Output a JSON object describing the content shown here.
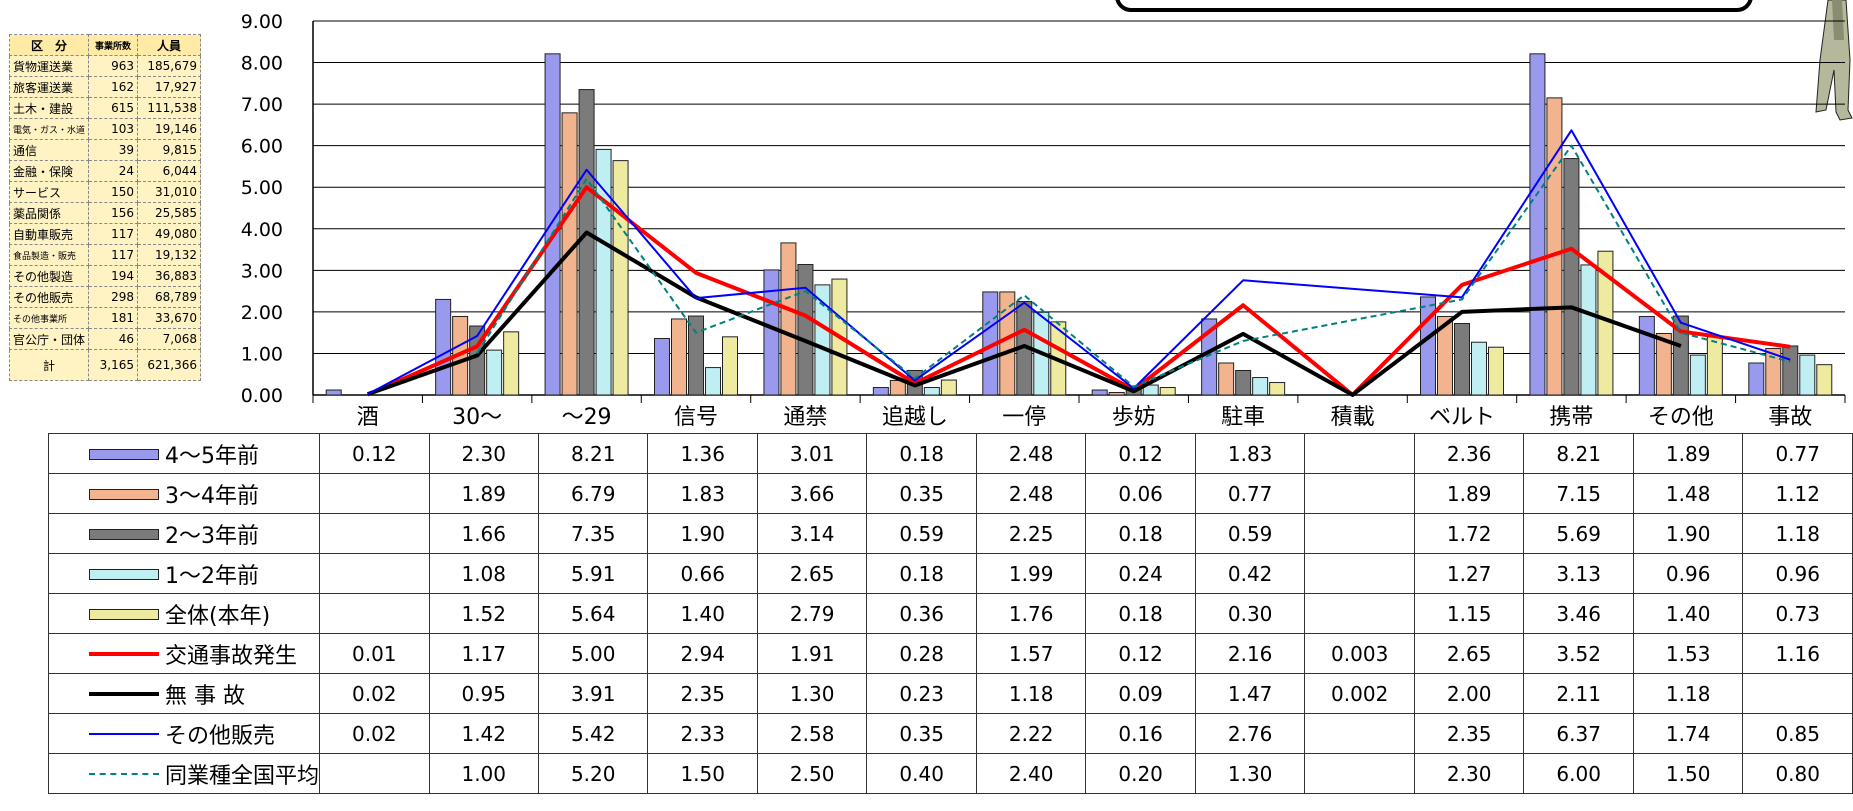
{
  "industry_table": {
    "headers": [
      "区　分",
      "事業所数",
      "人員"
    ],
    "rows": [
      {
        "name": "貨物運送業",
        "count": "963",
        "people": "185,679",
        "small": false
      },
      {
        "name": "旅客運送業",
        "count": "162",
        "people": "17,927",
        "small": false
      },
      {
        "name": "土木・建設",
        "count": "615",
        "people": "111,538",
        "small": false
      },
      {
        "name": "電気・ガス・水道",
        "count": "103",
        "people": "19,146",
        "small": true
      },
      {
        "name": "通信",
        "count": "39",
        "people": "9,815",
        "small": false
      },
      {
        "name": "金融・保険",
        "count": "24",
        "people": "6,044",
        "small": false
      },
      {
        "name": "サービス",
        "count": "150",
        "people": "31,010",
        "small": false
      },
      {
        "name": "薬品関係",
        "count": "156",
        "people": "25,585",
        "small": false
      },
      {
        "name": "自動車販売",
        "count": "117",
        "people": "49,080",
        "small": false
      },
      {
        "name": "食品製造・販売",
        "count": "117",
        "people": "19,132",
        "small": true
      },
      {
        "name": "その他製造",
        "count": "194",
        "people": "36,883",
        "small": false
      },
      {
        "name": "その他販売",
        "count": "298",
        "people": "68,789",
        "small": false
      },
      {
        "name": "その他事業所",
        "count": "181",
        "people": "33,670",
        "small": true
      },
      {
        "name": "官公庁・団体",
        "count": "46",
        "people": "7,068",
        "small": false
      }
    ],
    "total": {
      "name": "計",
      "count": "3,165",
      "people": "621,366"
    }
  },
  "chart_data": {
    "type": "bar",
    "categories": [
      "酒",
      "30～",
      "～29",
      "信号",
      "通禁",
      "追越し",
      "一停",
      "歩妨",
      "駐車",
      "積載",
      "ベルト",
      "携帯",
      "その他",
      "事故"
    ],
    "ylim": [
      0,
      9
    ],
    "yticks": [
      "0.00",
      "1.00",
      "2.00",
      "3.00",
      "4.00",
      "5.00",
      "6.00",
      "7.00",
      "8.00",
      "9.00"
    ],
    "grid": true,
    "series": [
      {
        "name": "4～5年前",
        "kind": "bar",
        "color": "#9999ee",
        "display": [
          "0.12",
          "2.30",
          "8.21",
          "1.36",
          "3.01",
          "0.18",
          "2.48",
          "0.12",
          "1.83",
          "",
          "2.36",
          "8.21",
          "1.89",
          "0.77"
        ]
      },
      {
        "name": "3～4年前",
        "kind": "bar",
        "color": "#f2b48e",
        "display": [
          "",
          "1.89",
          "6.79",
          "1.83",
          "3.66",
          "0.35",
          "2.48",
          "0.06",
          "0.77",
          "",
          "1.89",
          "7.15",
          "1.48",
          "1.12"
        ]
      },
      {
        "name": "2～3年前",
        "kind": "bar",
        "color": "#7b7b7b",
        "display": [
          "",
          "1.66",
          "7.35",
          "1.90",
          "3.14",
          "0.59",
          "2.25",
          "0.18",
          "0.59",
          "",
          "1.72",
          "5.69",
          "1.90",
          "1.18"
        ]
      },
      {
        "name": "1～2年前",
        "kind": "bar",
        "color": "#bfeff2",
        "display": [
          "",
          "1.08",
          "5.91",
          "0.66",
          "2.65",
          "0.18",
          "1.99",
          "0.24",
          "0.42",
          "",
          "1.27",
          "3.13",
          "0.96",
          "0.96"
        ]
      },
      {
        "name": "全体(本年)",
        "kind": "bar",
        "color": "#eeeaa0",
        "display": [
          "",
          "1.52",
          "5.64",
          "1.40",
          "2.79",
          "0.36",
          "1.76",
          "0.18",
          "0.30",
          "",
          "1.15",
          "3.46",
          "1.40",
          "0.73"
        ]
      },
      {
        "name": "交通事故発生",
        "kind": "line",
        "color": "#ff0000",
        "width": 4,
        "dash": "",
        "display": [
          "0.01",
          "1.17",
          "5.00",
          "2.94",
          "1.91",
          "0.28",
          "1.57",
          "0.12",
          "2.16",
          "0.003",
          "2.65",
          "3.52",
          "1.53",
          "1.16"
        ]
      },
      {
        "name": "無 事 故",
        "kind": "line",
        "color": "#000000",
        "width": 4,
        "dash": "",
        "display": [
          "0.02",
          "0.95",
          "3.91",
          "2.35",
          "1.30",
          "0.23",
          "1.18",
          "0.09",
          "1.47",
          "0.002",
          "2.00",
          "2.11",
          "1.18",
          ""
        ]
      },
      {
        "name": "その他販売",
        "kind": "line",
        "color": "#0000ff",
        "width": 2,
        "dash": "",
        "display": [
          "0.02",
          "1.42",
          "5.42",
          "2.33",
          "2.58",
          "0.35",
          "2.22",
          "0.16",
          "2.76",
          "",
          "2.35",
          "6.37",
          "1.74",
          "0.85"
        ]
      },
      {
        "name": "同業種全国平均",
        "kind": "line",
        "color": "#008080",
        "width": 2,
        "dash": "6,4",
        "display": [
          "",
          "1.00",
          "5.20",
          "1.50",
          "2.50",
          "0.40",
          "2.40",
          "0.20",
          "1.30",
          "",
          "2.30",
          "6.00",
          "1.50",
          "0.80"
        ]
      }
    ]
  }
}
